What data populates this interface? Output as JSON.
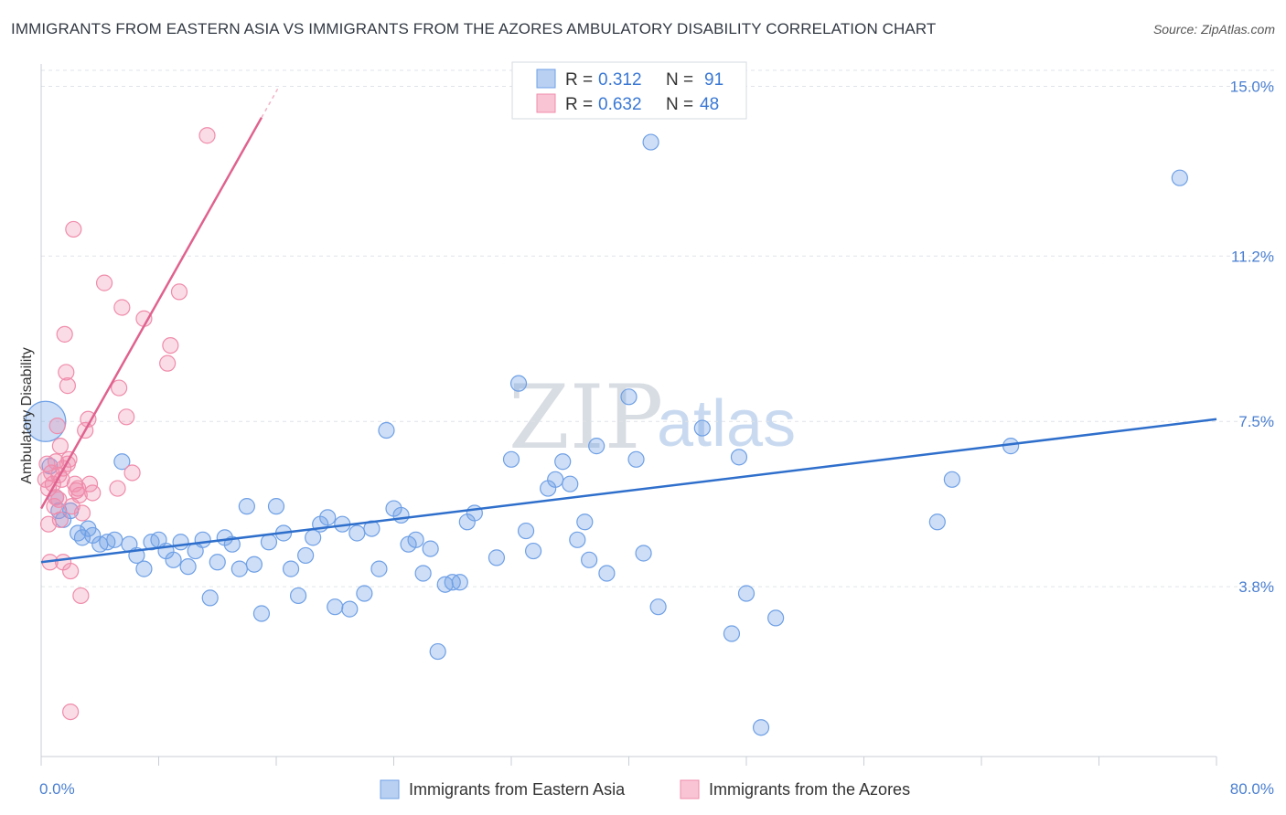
{
  "title": "IMMIGRANTS FROM EASTERN ASIA VS IMMIGRANTS FROM THE AZORES AMBULATORY DISABILITY CORRELATION CHART",
  "source": "Source: ZipAtlas.com",
  "watermark": {
    "zip": "ZIP",
    "atlas": "atlas"
  },
  "colors": {
    "blue": "#6fa0e6",
    "blue_line": "#2f6fcc",
    "pink": "#f08cab",
    "pink_line": "#e0628e",
    "grid": "#dfe3e8",
    "tick_label": "#4a7fd0"
  },
  "legend": {
    "r_label": "R =",
    "n_label": "N =",
    "rows": [
      {
        "r": "0.312",
        "n": "91"
      },
      {
        "r": "0.632",
        "n": "48"
      }
    ]
  },
  "chart_data": {
    "type": "scatter",
    "title": "IMMIGRANTS FROM EASTERN ASIA VS IMMIGRANTS FROM THE AZORES AMBULATORY DISABILITY CORRELATION CHART",
    "xlabel": "",
    "ylabel": "Ambulatory Disability",
    "xlim": [
      0,
      80
    ],
    "ylim": [
      0,
      15.5
    ],
    "x_tick_labels": {
      "min": "0.0%",
      "max": "80.0%"
    },
    "y_ticks": [
      {
        "value": 3.8,
        "label": "3.8%"
      },
      {
        "value": 7.5,
        "label": "7.5%"
      },
      {
        "value": 11.2,
        "label": "11.2%"
      },
      {
        "value": 15.0,
        "label": "15.0%"
      }
    ],
    "series": [
      {
        "name": "Immigrants from Eastern Asia",
        "color": "#6fa0e6",
        "trend": {
          "x0": 0,
          "y0": 4.35,
          "x1": 80,
          "y1": 7.55
        },
        "points": [
          [
            0.3,
            7.5
          ],
          [
            0.6,
            6.5
          ],
          [
            1.0,
            5.8
          ],
          [
            1.2,
            5.5
          ],
          [
            1.5,
            5.3
          ],
          [
            2.0,
            5.5
          ],
          [
            2.5,
            5.0
          ],
          [
            2.8,
            4.9
          ],
          [
            3.2,
            5.1
          ],
          [
            3.5,
            4.95
          ],
          [
            4.0,
            4.75
          ],
          [
            4.5,
            4.8
          ],
          [
            5.0,
            4.85
          ],
          [
            5.5,
            6.6
          ],
          [
            6.0,
            4.75
          ],
          [
            6.5,
            4.5
          ],
          [
            7.0,
            4.2
          ],
          [
            7.5,
            4.8
          ],
          [
            8.0,
            4.85
          ],
          [
            8.5,
            4.6
          ],
          [
            9.0,
            4.4
          ],
          [
            9.5,
            4.8
          ],
          [
            10.0,
            4.25
          ],
          [
            10.5,
            4.6
          ],
          [
            11.0,
            4.85
          ],
          [
            11.5,
            3.55
          ],
          [
            12.0,
            4.35
          ],
          [
            12.5,
            4.9
          ],
          [
            13.0,
            4.75
          ],
          [
            13.5,
            4.2
          ],
          [
            14.0,
            5.6
          ],
          [
            14.5,
            4.3
          ],
          [
            15.0,
            3.2
          ],
          [
            15.5,
            4.8
          ],
          [
            16.0,
            5.6
          ],
          [
            16.5,
            5.0
          ],
          [
            17.0,
            4.2
          ],
          [
            17.5,
            3.6
          ],
          [
            18.0,
            4.5
          ],
          [
            18.5,
            4.9
          ],
          [
            19.0,
            5.2
          ],
          [
            19.5,
            5.35
          ],
          [
            20.0,
            3.35
          ],
          [
            20.5,
            5.2
          ],
          [
            21.0,
            3.3
          ],
          [
            21.5,
            5.0
          ],
          [
            22.0,
            3.65
          ],
          [
            22.5,
            5.1
          ],
          [
            23.0,
            4.2
          ],
          [
            23.5,
            7.3
          ],
          [
            24.0,
            5.55
          ],
          [
            24.5,
            5.4
          ],
          [
            25.0,
            4.75
          ],
          [
            25.5,
            4.85
          ],
          [
            26.0,
            4.1
          ],
          [
            26.5,
            4.65
          ],
          [
            27.0,
            2.35
          ],
          [
            27.5,
            3.85
          ],
          [
            28.0,
            3.9
          ],
          [
            28.5,
            3.9
          ],
          [
            29.0,
            5.25
          ],
          [
            29.5,
            5.45
          ],
          [
            31.0,
            4.45
          ],
          [
            32.0,
            6.65
          ],
          [
            32.5,
            8.35
          ],
          [
            33.0,
            5.05
          ],
          [
            33.5,
            4.6
          ],
          [
            34.5,
            6.0
          ],
          [
            35.0,
            6.2
          ],
          [
            35.5,
            6.6
          ],
          [
            36.0,
            6.1
          ],
          [
            36.5,
            4.85
          ],
          [
            37.0,
            5.25
          ],
          [
            37.3,
            4.4
          ],
          [
            37.8,
            6.95
          ],
          [
            38.5,
            4.1
          ],
          [
            40.0,
            8.05
          ],
          [
            40.5,
            6.65
          ],
          [
            41.0,
            4.55
          ],
          [
            41.5,
            13.75
          ],
          [
            42.0,
            3.35
          ],
          [
            45.0,
            7.35
          ],
          [
            47.0,
            2.75
          ],
          [
            47.5,
            6.7
          ],
          [
            48.0,
            3.65
          ],
          [
            49.0,
            0.65
          ],
          [
            50.0,
            3.1
          ],
          [
            61.0,
            5.25
          ],
          [
            62.0,
            6.2
          ],
          [
            66.0,
            6.95
          ],
          [
            77.5,
            12.95
          ]
        ]
      },
      {
        "name": "Immigrants from the Azores",
        "color": "#f08cab",
        "trend": {
          "x0": 0,
          "y0": 5.55,
          "x1": 15.0,
          "y1": 14.3
        },
        "points": [
          [
            0.3,
            6.2
          ],
          [
            0.5,
            6.0
          ],
          [
            0.5,
            5.2
          ],
          [
            0.6,
            4.35
          ],
          [
            0.7,
            6.35
          ],
          [
            0.8,
            6.1
          ],
          [
            1.0,
            6.6
          ],
          [
            1.0,
            5.8
          ],
          [
            1.1,
            7.4
          ],
          [
            1.2,
            6.3
          ],
          [
            1.2,
            5.75
          ],
          [
            1.3,
            6.95
          ],
          [
            1.4,
            6.2
          ],
          [
            1.5,
            6.45
          ],
          [
            1.5,
            4.35
          ],
          [
            1.6,
            9.45
          ],
          [
            1.7,
            8.6
          ],
          [
            1.8,
            8.3
          ],
          [
            1.9,
            6.65
          ],
          [
            2.0,
            4.15
          ],
          [
            2.0,
            1.0
          ],
          [
            2.2,
            11.8
          ],
          [
            2.4,
            5.95
          ],
          [
            2.5,
            6.0
          ],
          [
            2.6,
            5.85
          ],
          [
            2.7,
            3.6
          ],
          [
            2.8,
            5.45
          ],
          [
            3.0,
            7.3
          ],
          [
            3.2,
            7.55
          ],
          [
            3.3,
            6.1
          ],
          [
            4.3,
            10.6
          ],
          [
            5.2,
            6.0
          ],
          [
            5.3,
            8.25
          ],
          [
            5.5,
            10.05
          ],
          [
            5.8,
            7.6
          ],
          [
            6.2,
            6.35
          ],
          [
            7.0,
            9.8
          ],
          [
            8.6,
            8.8
          ],
          [
            8.8,
            9.2
          ],
          [
            9.4,
            10.4
          ],
          [
            11.3,
            13.9
          ],
          [
            1.3,
            5.3
          ],
          [
            0.9,
            5.6
          ],
          [
            1.8,
            6.55
          ],
          [
            2.3,
            6.1
          ],
          [
            3.5,
            5.9
          ],
          [
            0.4,
            6.55
          ],
          [
            2.1,
            5.6
          ]
        ]
      }
    ]
  }
}
